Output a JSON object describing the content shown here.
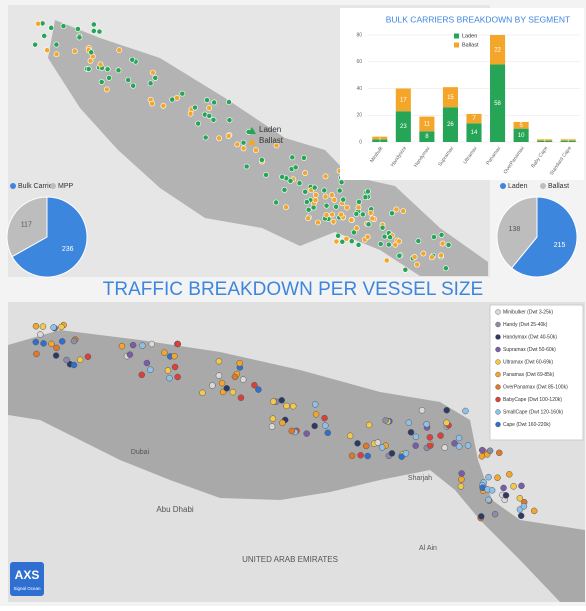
{
  "chart_data": [
    {
      "type": "bar",
      "title": "BULK CARRIERS BREAKDOWN BY SEGMENT",
      "stacked": true,
      "categories": [
        "Minibulk",
        "Handysize",
        "Handymax",
        "Supramax",
        "Ultramax",
        "Panamax",
        "OverPanamax",
        "Baby Cape",
        "Standard Cape"
      ],
      "series": [
        {
          "name": "Laden",
          "color": "#27a557",
          "values": [
            2,
            23,
            8,
            26,
            14,
            58,
            10,
            1,
            1
          ]
        },
        {
          "name": "Ballast",
          "color": "#f4a62a",
          "values": [
            2,
            17,
            11,
            15,
            7,
            22,
            5,
            1,
            1
          ]
        }
      ],
      "ylim": [
        0,
        80
      ],
      "yticks": [
        0,
        20,
        40,
        60,
        80
      ],
      "grid": true,
      "legend": "top-left"
    },
    {
      "type": "pie",
      "categories": [
        "Bulk Carrier",
        "MPP"
      ],
      "values": [
        236,
        117
      ],
      "colors": [
        "#3d86de",
        "#bdbdbd"
      ],
      "legend": "top"
    },
    {
      "type": "pie",
      "categories": [
        "Laden",
        "Ballast"
      ],
      "values": [
        215,
        138
      ],
      "colors": [
        "#3d86de",
        "#bdbdbd"
      ],
      "legend": "top"
    }
  ],
  "top_map": {
    "legend": [
      {
        "label": "Laden",
        "color": "#27a557"
      },
      {
        "label": "Ballast",
        "color": "#f4a62a"
      }
    ]
  },
  "headline": "TRAFFIC BREAKDOWN PER VESSEL SIZE",
  "bottom_map": {
    "legend": [
      {
        "label": "Minibulker (Dwt 3-25k)",
        "color": "#d9d9d9"
      },
      {
        "label": "Handy (Dwt 25-40k)",
        "color": "#8c8ca8"
      },
      {
        "label": "Handymax (Dwt 40-50k)",
        "color": "#2e3a66"
      },
      {
        "label": "Supramax (Dwt 50-60k)",
        "color": "#7a5ca8"
      },
      {
        "label": "Ultramax (Dwt 60-69k)",
        "color": "#f2c94c"
      },
      {
        "label": "Panamax (Dwt 69-85k)",
        "color": "#f4a62a"
      },
      {
        "label": "OverPanamax (Dwt 85-100k)",
        "color": "#e0782a"
      },
      {
        "label": "BabyCape (Dwt 100-120k)",
        "color": "#d9413a"
      },
      {
        "label": "SmallCape (Dwt 120-160k)",
        "color": "#8fc1e8"
      },
      {
        "label": "Cape (Dwt 160-220k)",
        "color": "#2f6fd1"
      }
    ],
    "places": [
      "UNITED ARAB EMIRATES",
      "Abu Dhabi",
      "Dubai",
      "Sharjah",
      "Al Ain"
    ]
  },
  "logo": {
    "text": "AXS",
    "subtitle": "Signal Ocean"
  }
}
